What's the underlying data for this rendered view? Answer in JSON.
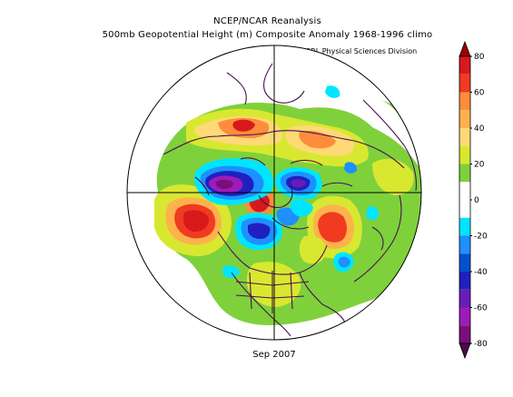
{
  "header": {
    "title_line1": "NCEP/NCAR Reanalysis",
    "title_line2": "500mb Geopotential Height (m) Composite Anomaly 1968-1996 climo",
    "credit": "NOAA/ESRL Physical Sciences Division"
  },
  "footer": {
    "date": "Sep 2007"
  },
  "map": {
    "projection": "north-polar-stereographic",
    "variable": "500mb geopotential height anomaly",
    "units": "m"
  },
  "colorbar": {
    "labels": [
      "80",
      "60",
      "40",
      "20",
      "0",
      "-20",
      "-40",
      "-60",
      "-80"
    ],
    "bins": [
      {
        "from": 70,
        "to": 80,
        "color": "#d7191c"
      },
      {
        "from": 60,
        "to": 70,
        "color": "#f03b20"
      },
      {
        "from": 50,
        "to": 60,
        "color": "#fd8d3c"
      },
      {
        "from": 40,
        "to": 50,
        "color": "#feb24c"
      },
      {
        "from": 30,
        "to": 40,
        "color": "#fed976"
      },
      {
        "from": 20,
        "to": 30,
        "color": "#d8e830"
      },
      {
        "from": 10,
        "to": 20,
        "color": "#7fd13b"
      },
      {
        "from": 0,
        "to": 10,
        "color": "#ffffff"
      },
      {
        "from": -10,
        "to": 0,
        "color": "#ffffff"
      },
      {
        "from": -20,
        "to": -10,
        "color": "#00e5ff"
      },
      {
        "from": -30,
        "to": -20,
        "color": "#1e90ff"
      },
      {
        "from": -40,
        "to": -30,
        "color": "#0050d0"
      },
      {
        "from": -50,
        "to": -40,
        "color": "#2020c0"
      },
      {
        "from": -60,
        "to": -50,
        "color": "#6a1cb8"
      },
      {
        "from": -70,
        "to": -60,
        "color": "#9c1cb8"
      },
      {
        "from": -80,
        "to": -70,
        "color": "#7a0e7a"
      }
    ]
  }
}
